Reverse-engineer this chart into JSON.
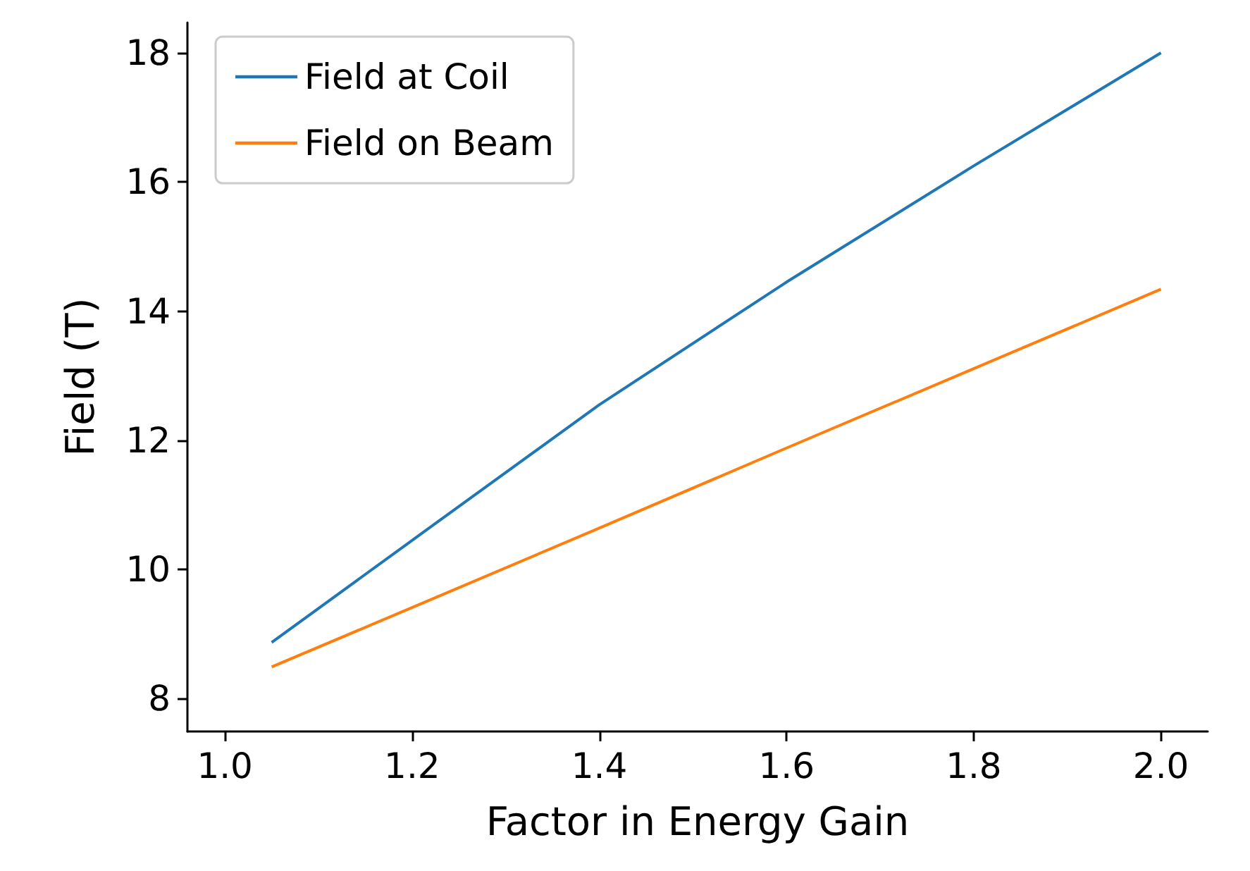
{
  "chart_data": {
    "type": "line",
    "xlabel": "Factor in Energy Gain",
    "ylabel": "Field (T)",
    "x": [
      1.05,
      1.2,
      1.4,
      1.6,
      1.8,
      2.0
    ],
    "series": [
      {
        "name": "Field at Coil",
        "color": "#1f77b4",
        "values": [
          8.87,
          10.45,
          12.55,
          14.45,
          16.25,
          18.0
        ]
      },
      {
        "name": "Field on Beam",
        "color": "#ff7f0e",
        "values": [
          8.49,
          9.41,
          10.64,
          11.88,
          13.11,
          14.34
        ]
      }
    ],
    "xlim": [
      0.96,
      2.05
    ],
    "ylim": [
      7.49,
      18.47
    ],
    "xticks": [
      {
        "value": 1,
        "label": "1.0"
      },
      {
        "value": 1.2,
        "label": "1.2"
      },
      {
        "value": 1.4,
        "label": "1.4"
      },
      {
        "value": 1.6,
        "label": "1.6"
      },
      {
        "value": 1.8,
        "label": "1.8"
      },
      {
        "value": 2,
        "label": "2.0"
      }
    ],
    "yticks": [
      8,
      10,
      12,
      14,
      16,
      18
    ],
    "legend": "top left",
    "grid": false,
    "marker": "none",
    "line_style": "solid"
  }
}
